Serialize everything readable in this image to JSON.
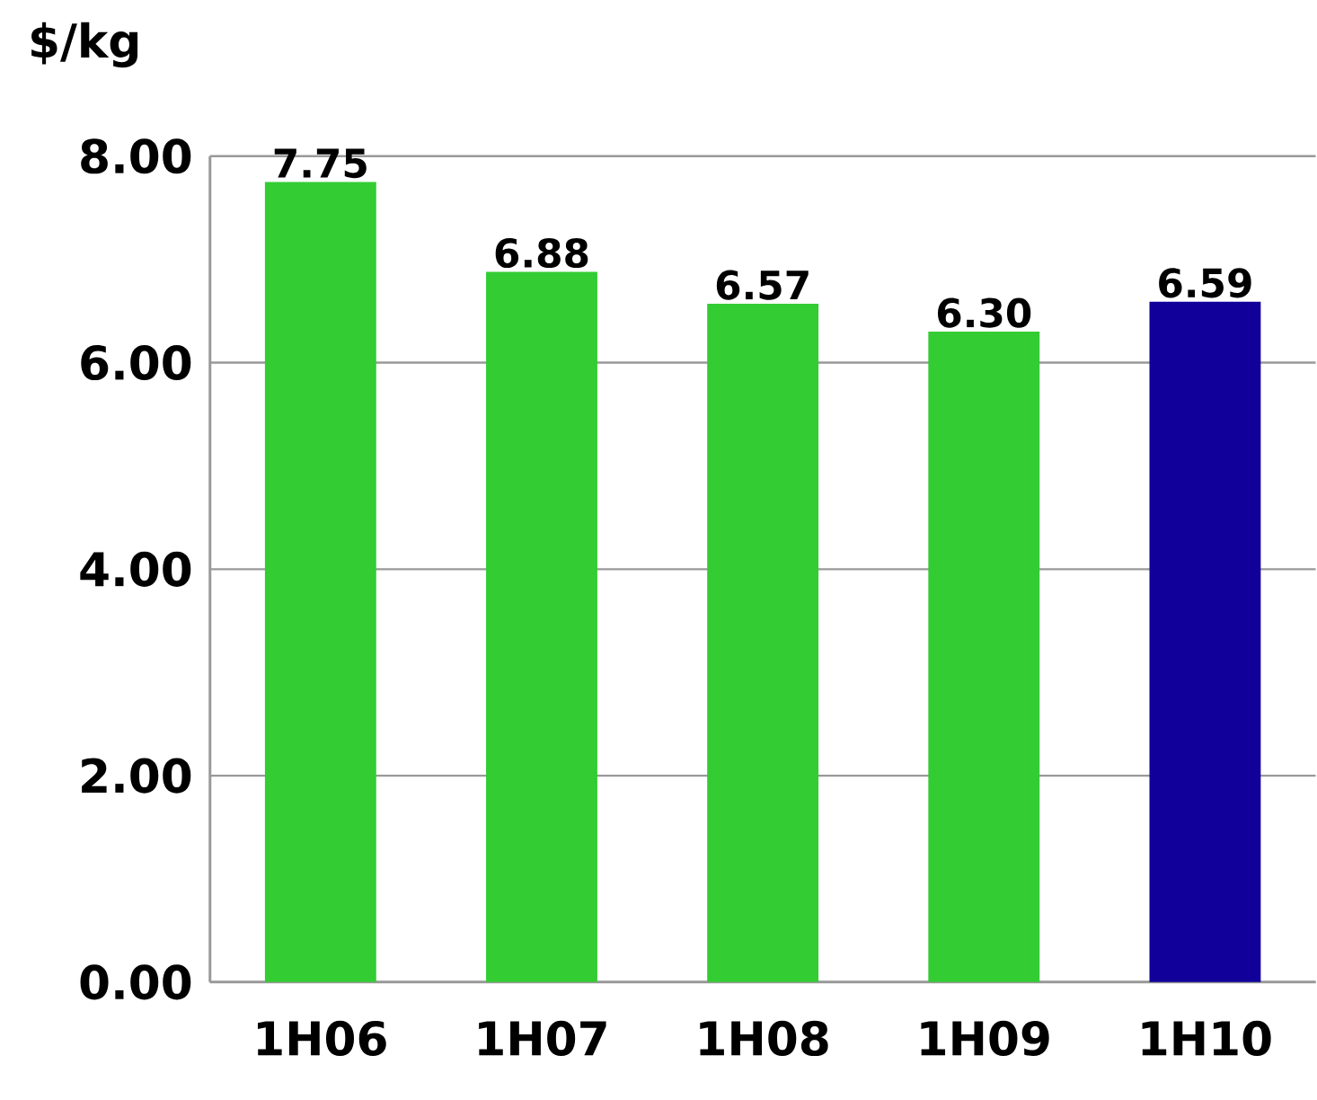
{
  "chart_data": {
    "type": "bar",
    "ylabel": "$/kg",
    "categories": [
      "1H06",
      "1H07",
      "1H08",
      "1H09",
      "1H10"
    ],
    "values": [
      7.75,
      6.88,
      6.57,
      6.3,
      6.59
    ],
    "colors": [
      "#33cc33",
      "#33cc33",
      "#33cc33",
      "#33cc33",
      "#110099"
    ],
    "ylim": [
      0,
      8
    ],
    "yticks": [
      {
        "value": 0,
        "label": "0.00"
      },
      {
        "value": 2,
        "label": "2.00"
      },
      {
        "value": 4,
        "label": "4.00"
      },
      {
        "value": 6,
        "label": "6.00"
      },
      {
        "value": 8,
        "label": "8.00"
      }
    ],
    "value_labels": [
      "7.75",
      "6.88",
      "6.57",
      "6.30",
      "6.59"
    ],
    "grid": "y"
  }
}
